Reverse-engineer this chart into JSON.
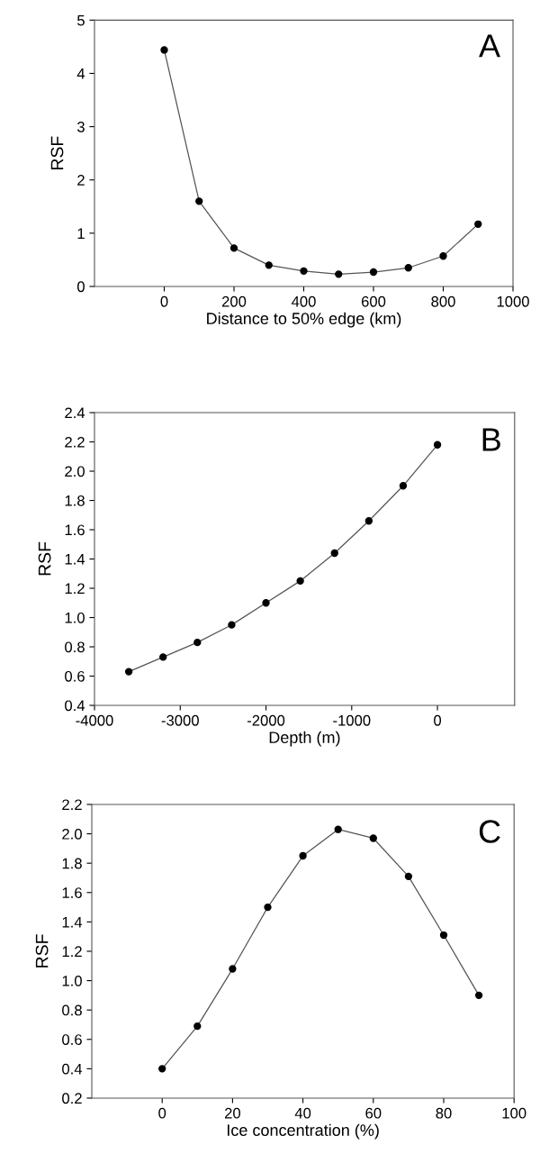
{
  "chart_data": [
    {
      "type": "line",
      "title": "A",
      "xlabel": "Distance to 50% edge (km)",
      "ylabel": "RSF",
      "x": [
        0,
        100,
        200,
        300,
        400,
        500,
        600,
        700,
        800,
        900
      ],
      "series": [
        {
          "color": "#000000",
          "values": [
            4.44,
            1.6,
            0.72,
            0.4,
            0.29,
            0.23,
            0.27,
            0.35,
            0.57,
            1.17
          ]
        }
      ],
      "xlim": [
        -200,
        1000
      ],
      "xticks": [
        0,
        200,
        400,
        600,
        800,
        1000
      ],
      "ylim": [
        0,
        5
      ],
      "yticks": [
        0,
        1,
        2,
        3,
        4,
        5
      ],
      "marker": "circle",
      "line_style": "solid",
      "grid": false,
      "legend": false
    },
    {
      "type": "line",
      "title": "B",
      "xlabel": "Depth (m)",
      "ylabel": "RSF",
      "x": [
        -3600,
        -3200,
        -2800,
        -2400,
        -2000,
        -1600,
        -1200,
        -800,
        -400,
        0
      ],
      "series": [
        {
          "color": "#000000",
          "values": [
            0.63,
            0.73,
            0.83,
            0.95,
            1.1,
            1.25,
            1.44,
            1.66,
            1.9,
            2.18
          ]
        }
      ],
      "xlim": [
        -4000,
        900
      ],
      "xticks": [
        -4000,
        -3000,
        -2000,
        -1000,
        0
      ],
      "ylim": [
        0.4,
        2.4
      ],
      "yticks": [
        {
          "value": 0.4,
          "label": "0.4"
        },
        {
          "value": 0.6,
          "label": "0.6"
        },
        {
          "value": 0.8,
          "label": "0.8"
        },
        {
          "value": 1.0,
          "label": "1.0"
        },
        {
          "value": 1.2,
          "label": "1.2"
        },
        {
          "value": 1.4,
          "label": "1.4"
        },
        {
          "value": 1.6,
          "label": "1.6"
        },
        {
          "value": 1.8,
          "label": "1.8"
        },
        {
          "value": 2.0,
          "label": "2.0"
        },
        {
          "value": 2.2,
          "label": "2.2"
        },
        {
          "value": 2.4,
          "label": "2.4"
        }
      ],
      "marker": "circle",
      "line_style": "solid",
      "grid": false,
      "legend": false
    },
    {
      "type": "line",
      "title": "C",
      "xlabel": "Ice concentration (%)",
      "ylabel": "RSF",
      "x": [
        0,
        10,
        20,
        30,
        40,
        50,
        60,
        70,
        80,
        90
      ],
      "series": [
        {
          "color": "#000000",
          "values": [
            0.4,
            0.69,
            1.08,
            1.5,
            1.85,
            2.03,
            1.97,
            1.71,
            1.31,
            0.9
          ]
        }
      ],
      "xlim": [
        -20,
        100
      ],
      "xticks": [
        0,
        20,
        40,
        60,
        80,
        100
      ],
      "ylim": [
        0.2,
        2.2
      ],
      "yticks": [
        {
          "value": 0.2,
          "label": "0.2"
        },
        {
          "value": 0.4,
          "label": "0.4"
        },
        {
          "value": 0.6,
          "label": "0.6"
        },
        {
          "value": 0.8,
          "label": "0.8"
        },
        {
          "value": 1.0,
          "label": "1.0"
        },
        {
          "value": 1.2,
          "label": "1.2"
        },
        {
          "value": 1.4,
          "label": "1.4"
        },
        {
          "value": 1.6,
          "label": "1.6"
        },
        {
          "value": 1.8,
          "label": "1.8"
        },
        {
          "value": 2.0,
          "label": "2.0"
        },
        {
          "value": 2.2,
          "label": "2.2"
        }
      ],
      "marker": "circle",
      "line_style": "solid",
      "grid": false,
      "legend": false
    }
  ]
}
